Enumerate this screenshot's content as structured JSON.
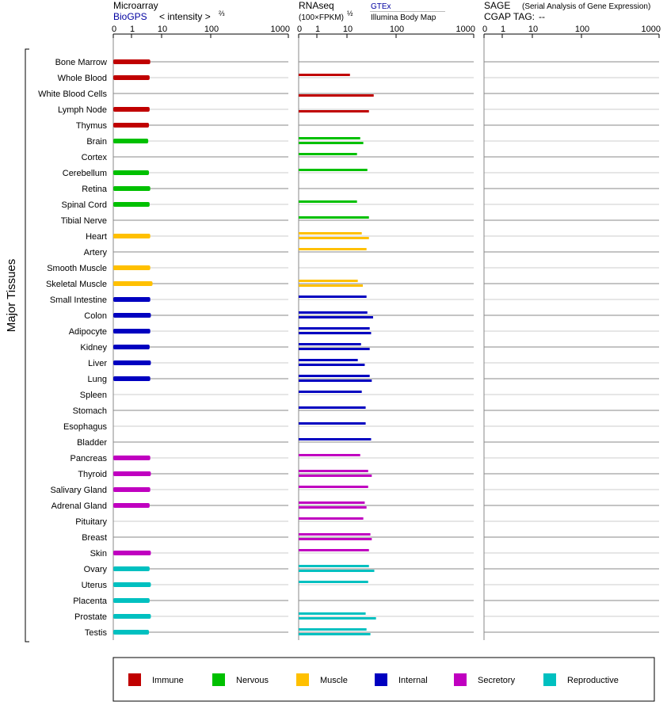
{
  "headers": {
    "microarray": {
      "title": "Microarray",
      "source": "BioGPS",
      "unit": "< intensity >",
      "unit_exp": "⅔"
    },
    "rnaseq": {
      "title": "RNAseq",
      "unit": "(100×FPKM)",
      "unit_exp": "½",
      "source1": "GTEx",
      "source2": "Illumina Body Map"
    },
    "sage": {
      "title": "SAGE",
      "subtitle": "(Serial Analysis of Gene Expression)",
      "tag_label": "CGAP TAG:",
      "tag_value": "--"
    }
  },
  "colors": {
    "Immune": "#c00000",
    "Nervous": "#00c000",
    "Muscle": "#ffc000",
    "Internal": "#0000c0",
    "Secretory": "#c000c0",
    "Reproductive": "#00c0c0"
  },
  "chart_data": {
    "type": "bar",
    "title": "Major Tissues expression",
    "ylabel": "Major Tissues",
    "tick_labels": [
      "0",
      "1",
      "10",
      "100",
      "1000"
    ],
    "xlim": [
      0,
      1000
    ],
    "legend_position": "bottom",
    "legend": [
      "Immune",
      "Nervous",
      "Muscle",
      "Internal",
      "Secretory",
      "Reproductive"
    ],
    "tissues": [
      {
        "name": "Bone Marrow",
        "group": "Immune",
        "microarray": 4.2,
        "gtex": null,
        "illumina": null
      },
      {
        "name": "Whole Blood",
        "group": "Immune",
        "microarray": 4.0,
        "gtex": 11.5,
        "illumina": null
      },
      {
        "name": "White Blood Cells",
        "group": "Immune",
        "microarray": null,
        "gtex": null,
        "illumina": 35
      },
      {
        "name": "Lymph Node",
        "group": "Immune",
        "microarray": 4.0,
        "gtex": null,
        "illumina": 28
      },
      {
        "name": "Thymus",
        "group": "Immune",
        "microarray": 3.8,
        "gtex": null,
        "illumina": null
      },
      {
        "name": "Brain",
        "group": "Nervous",
        "microarray": 3.6,
        "gtex": 18.6,
        "illumina": 21.5
      },
      {
        "name": "Cortex",
        "group": "Nervous",
        "microarray": null,
        "gtex": 16,
        "illumina": null
      },
      {
        "name": "Cerebellum",
        "group": "Nervous",
        "microarray": 3.8,
        "gtex": 26,
        "illumina": null
      },
      {
        "name": "Retina",
        "group": "Nervous",
        "microarray": 4.2,
        "gtex": null,
        "illumina": null
      },
      {
        "name": "Spinal Cord",
        "group": "Nervous",
        "microarray": 4.0,
        "gtex": 16,
        "illumina": null
      },
      {
        "name": "Tibial Nerve",
        "group": "Nervous",
        "microarray": null,
        "gtex": 28,
        "illumina": null
      },
      {
        "name": "Heart",
        "group": "Muscle",
        "microarray": 4.2,
        "gtex": 20,
        "illumina": 28
      },
      {
        "name": "Artery",
        "group": "Muscle",
        "microarray": null,
        "gtex": 25,
        "illumina": null
      },
      {
        "name": "Smooth Muscle",
        "group": "Muscle",
        "microarray": 4.2,
        "gtex": null,
        "illumina": null
      },
      {
        "name": "Skeletal Muscle",
        "group": "Muscle",
        "microarray": 5.0,
        "gtex": 16.6,
        "illumina": 21
      },
      {
        "name": "Small Intestine",
        "group": "Internal",
        "microarray": 4.2,
        "gtex": 25,
        "illumina": null
      },
      {
        "name": "Colon",
        "group": "Internal",
        "microarray": 4.4,
        "gtex": 26,
        "illumina": 34
      },
      {
        "name": "Adipocyte",
        "group": "Internal",
        "microarray": 4.2,
        "gtex": 29,
        "illumina": 31
      },
      {
        "name": "Kidney",
        "group": "Internal",
        "microarray": 4.0,
        "gtex": 19.3,
        "illumina": 29
      },
      {
        "name": "Liver",
        "group": "Internal",
        "microarray": 4.4,
        "gtex": 16.6,
        "illumina": 23
      },
      {
        "name": "Lung",
        "group": "Internal",
        "microarray": 4.2,
        "gtex": 29,
        "illumina": 32
      },
      {
        "name": "Spleen",
        "group": "Internal",
        "microarray": null,
        "gtex": 20,
        "illumina": null
      },
      {
        "name": "Stomach",
        "group": "Internal",
        "microarray": null,
        "gtex": 24,
        "illumina": null
      },
      {
        "name": "Esophagus",
        "group": "Internal",
        "microarray": null,
        "gtex": 24,
        "illumina": null
      },
      {
        "name": "Bladder",
        "group": "Internal",
        "microarray": null,
        "gtex": 31,
        "illumina": null
      },
      {
        "name": "Pancreas",
        "group": "Secretory",
        "microarray": 4.2,
        "gtex": 18.6,
        "illumina": null
      },
      {
        "name": "Thyroid",
        "group": "Secretory",
        "microarray": 4.4,
        "gtex": 27,
        "illumina": 32
      },
      {
        "name": "Salivary Gland",
        "group": "Secretory",
        "microarray": 4.2,
        "gtex": 27,
        "illumina": null
      },
      {
        "name": "Adrenal Gland",
        "group": "Secretory",
        "microarray": 4.0,
        "gtex": 23,
        "illumina": 25
      },
      {
        "name": "Pituitary",
        "group": "Secretory",
        "microarray": null,
        "gtex": 21.5,
        "illumina": null
      },
      {
        "name": "Breast",
        "group": "Secretory",
        "microarray": null,
        "gtex": 30,
        "illumina": 32
      },
      {
        "name": "Skin",
        "group": "Secretory",
        "microarray": 4.4,
        "gtex": 28,
        "illumina": null
      },
      {
        "name": "Ovary",
        "group": "Reproductive",
        "microarray": 4.0,
        "gtex": 28,
        "illumina": 36
      },
      {
        "name": "Uterus",
        "group": "Reproductive",
        "microarray": 4.4,
        "gtex": 27,
        "illumina": null
      },
      {
        "name": "Placenta",
        "group": "Reproductive",
        "microarray": 4.0,
        "gtex": null,
        "illumina": null
      },
      {
        "name": "Prostate",
        "group": "Reproductive",
        "microarray": 4.4,
        "gtex": 24,
        "illumina": 39
      },
      {
        "name": "Testis",
        "group": "Reproductive",
        "microarray": 3.8,
        "gtex": 25,
        "illumina": 30
      }
    ]
  }
}
